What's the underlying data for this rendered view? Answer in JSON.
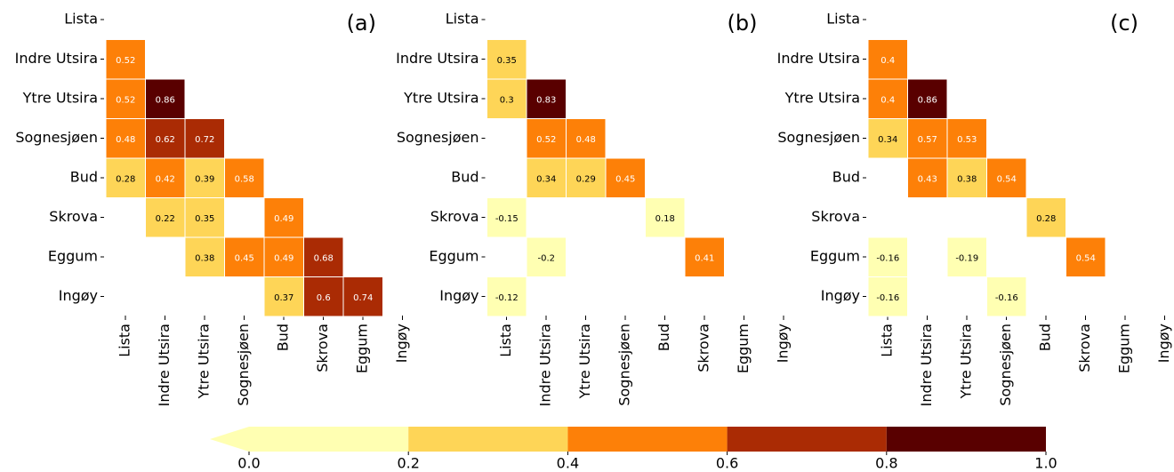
{
  "chart_data": [
    {
      "type": "heatmap",
      "annotation": "(a)",
      "categories": [
        "Lista",
        "Indre Utsira",
        "Ytre Utsira",
        "Sognesjøen",
        "Bud",
        "Skrova",
        "Eggum",
        "Ingøy"
      ],
      "values": [
        [
          null,
          null,
          null,
          null,
          null,
          null,
          null,
          null
        ],
        [
          0.52,
          null,
          null,
          null,
          null,
          null,
          null,
          null
        ],
        [
          0.52,
          0.86,
          null,
          null,
          null,
          null,
          null,
          null
        ],
        [
          0.48,
          0.62,
          0.72,
          null,
          null,
          null,
          null,
          null
        ],
        [
          0.28,
          0.42,
          0.39,
          0.58,
          null,
          null,
          null,
          null
        ],
        [
          null,
          0.22,
          0.35,
          null,
          0.49,
          null,
          null,
          null
        ],
        [
          null,
          null,
          0.38,
          0.45,
          0.49,
          0.68,
          null,
          null
        ],
        [
          null,
          null,
          null,
          null,
          0.37,
          0.6,
          0.74,
          null
        ]
      ]
    },
    {
      "type": "heatmap",
      "annotation": "(b)",
      "categories": [
        "Lista",
        "Indre Utsira",
        "Ytre Utsira",
        "Sognesjøen",
        "Bud",
        "Skrova",
        "Eggum",
        "Ingøy"
      ],
      "values": [
        [
          null,
          null,
          null,
          null,
          null,
          null,
          null,
          null
        ],
        [
          0.35,
          null,
          null,
          null,
          null,
          null,
          null,
          null
        ],
        [
          0.3,
          0.83,
          null,
          null,
          null,
          null,
          null,
          null
        ],
        [
          null,
          0.52,
          0.48,
          null,
          null,
          null,
          null,
          null
        ],
        [
          null,
          0.34,
          0.29,
          0.45,
          null,
          null,
          null,
          null
        ],
        [
          -0.15,
          null,
          null,
          null,
          0.18,
          null,
          null,
          null
        ],
        [
          null,
          -0.2,
          null,
          null,
          null,
          0.41,
          null,
          null
        ],
        [
          -0.12,
          null,
          null,
          null,
          null,
          null,
          null,
          null
        ]
      ]
    },
    {
      "type": "heatmap",
      "annotation": "(c)",
      "categories": [
        "Lista",
        "Indre Utsira",
        "Ytre Utsira",
        "Sognesjøen",
        "Bud",
        "Skrova",
        "Eggum",
        "Ingøy"
      ],
      "values": [
        [
          null,
          null,
          null,
          null,
          null,
          null,
          null,
          null
        ],
        [
          0.4,
          null,
          null,
          null,
          null,
          null,
          null,
          null
        ],
        [
          0.4,
          0.86,
          null,
          null,
          null,
          null,
          null,
          null
        ],
        [
          0.34,
          0.57,
          0.53,
          null,
          null,
          null,
          null,
          null
        ],
        [
          null,
          0.43,
          0.38,
          0.54,
          null,
          null,
          null,
          null
        ],
        [
          null,
          null,
          null,
          null,
          0.28,
          null,
          null,
          null
        ],
        [
          -0.16,
          null,
          -0.19,
          null,
          null,
          0.54,
          null,
          null
        ],
        [
          -0.16,
          null,
          null,
          -0.16,
          null,
          null,
          null,
          null
        ]
      ]
    },
    {
      "type": "colorbar",
      "xlim": [
        0,
        1
      ],
      "xticks": [
        {
          "value": 0,
          "label": "0.0"
        },
        {
          "value": 0.2,
          "label": "0.2"
        },
        {
          "value": 0.4,
          "label": "0.4"
        },
        {
          "value": 0.6,
          "label": "0.6"
        },
        {
          "value": 0.8,
          "label": "0.8"
        },
        {
          "value": 1,
          "label": "1.0"
        }
      ],
      "colors": [
        "#ffffb2",
        "#fed557",
        "#fd8008",
        "#aa2b04",
        "#590000"
      ],
      "under_color": "#ffffb2"
    }
  ]
}
